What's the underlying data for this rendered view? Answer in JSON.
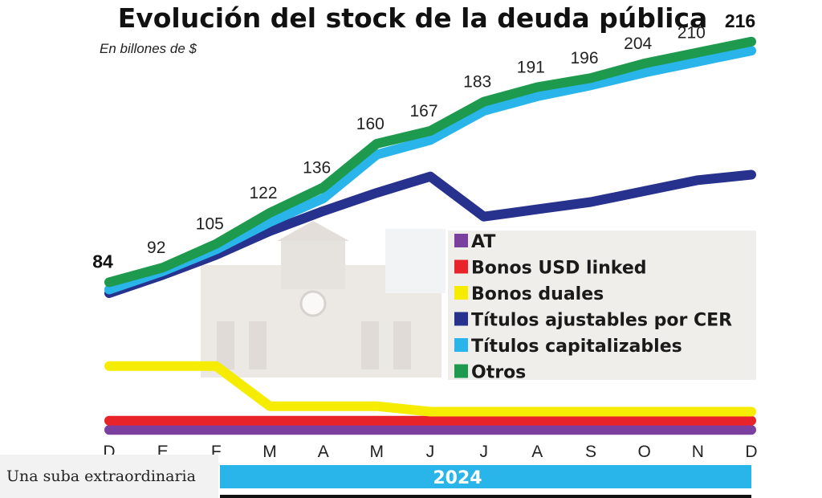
{
  "caption": "Una suba extraordinaria",
  "chart_data": {
    "type": "line",
    "title": "Evolución del stock de la deuda pública",
    "subtitle": "En billones de $",
    "x": [
      "D",
      "E",
      "F",
      "M",
      "A",
      "M",
      "J",
      "J",
      "A",
      "S",
      "O",
      "N",
      "D"
    ],
    "year_label": "2024",
    "totals": [
      84,
      92,
      105,
      122,
      136,
      160,
      167,
      183,
      191,
      196,
      204,
      210,
      216
    ],
    "ylim": [
      0,
      230
    ],
    "legend_position": "center-right",
    "grid": false,
    "series": [
      {
        "name": "AT",
        "color": "#7b3fa0",
        "values": [
          3,
          3,
          3,
          3,
          3,
          3,
          3,
          3,
          3,
          3,
          3,
          3,
          3
        ]
      },
      {
        "name": "Bonos USD linked",
        "color": "#e8242a",
        "values": [
          8,
          8,
          8,
          8,
          8,
          8,
          8,
          8,
          8,
          8,
          8,
          8,
          8
        ]
      },
      {
        "name": "Bonos duales",
        "color": "#f5ec00",
        "values": [
          38,
          38,
          38,
          16,
          16,
          16,
          13,
          13,
          13,
          13,
          13,
          13,
          13
        ]
      },
      {
        "name": "Títulos ajustables por CER",
        "color": "#27318e",
        "values": [
          78,
          88,
          99,
          112,
          123,
          133,
          142,
          120,
          124,
          128,
          134,
          140,
          143
        ]
      },
      {
        "name": "Títulos capitalizables",
        "color": "#2ab5ea",
        "values": [
          80,
          90,
          102,
          117,
          130,
          154,
          162,
          178,
          186,
          192,
          199,
          205,
          211
        ]
      },
      {
        "name": "Otros",
        "color": "#1e9a4e",
        "values": [
          84,
          92,
          105,
          122,
          136,
          160,
          167,
          183,
          191,
          196,
          204,
          210,
          216
        ]
      }
    ]
  }
}
